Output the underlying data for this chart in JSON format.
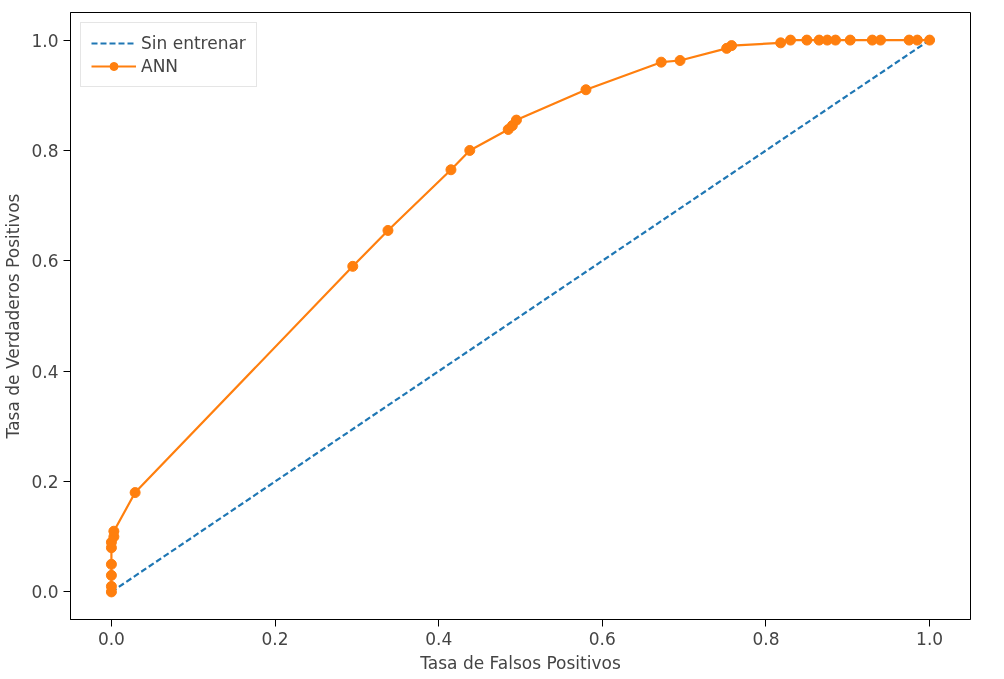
{
  "chart_data": {
    "type": "line",
    "xlabel": "Tasa de Falsos Positivos",
    "ylabel": "Tasa de Verdaderos Positivos",
    "series": [
      {
        "name": "Sin entrenar",
        "color": "#1f77b4",
        "x": [
          0,
          1
        ],
        "values": [
          0,
          1
        ],
        "line_style": "dashed",
        "marker": "none"
      },
      {
        "name": "ANN",
        "color": "#ff7f0e",
        "x": [
          0,
          0,
          0,
          0,
          0,
          0,
          0.003,
          0.003,
          0.029,
          0.295,
          0.338,
          0.415,
          0.438,
          0.485,
          0.49,
          0.495,
          0.58,
          0.672,
          0.695,
          0.752,
          0.758,
          0.818,
          0.83,
          0.85,
          0.865,
          0.875,
          0.885,
          0.903,
          0.93,
          0.94,
          0.975,
          0.985,
          1.0
        ],
        "values": [
          0,
          0.01,
          0.03,
          0.05,
          0.08,
          0.09,
          0.1,
          0.11,
          0.18,
          0.59,
          0.655,
          0.765,
          0.8,
          0.838,
          0.845,
          0.855,
          0.91,
          0.96,
          0.963,
          0.985,
          0.99,
          0.995,
          1.0,
          1.0,
          1.0,
          1.0,
          1.0,
          1.0,
          1.0,
          1.0,
          1.0,
          1.0,
          1.0
        ],
        "line_style": "solid",
        "marker": "circle"
      }
    ],
    "xlim": [
      -0.05,
      1.05
    ],
    "ylim": [
      -0.05,
      1.05
    ],
    "xticks": [
      {
        "value": 0,
        "label": "0.0"
      },
      {
        "value": 0.2,
        "label": "0.2"
      },
      {
        "value": 0.4,
        "label": "0.4"
      },
      {
        "value": 0.6,
        "label": "0.6"
      },
      {
        "value": 0.8,
        "label": "0.8"
      },
      {
        "value": 1,
        "label": "1.0"
      }
    ],
    "yticks": [
      {
        "value": 0,
        "label": "0.0"
      },
      {
        "value": 0.2,
        "label": "0.2"
      },
      {
        "value": 0.4,
        "label": "0.4"
      },
      {
        "value": 0.6,
        "label": "0.6"
      },
      {
        "value": 0.8,
        "label": "0.8"
      },
      {
        "value": 1,
        "label": "1.0"
      }
    ],
    "grid": false,
    "legend": "top left"
  }
}
